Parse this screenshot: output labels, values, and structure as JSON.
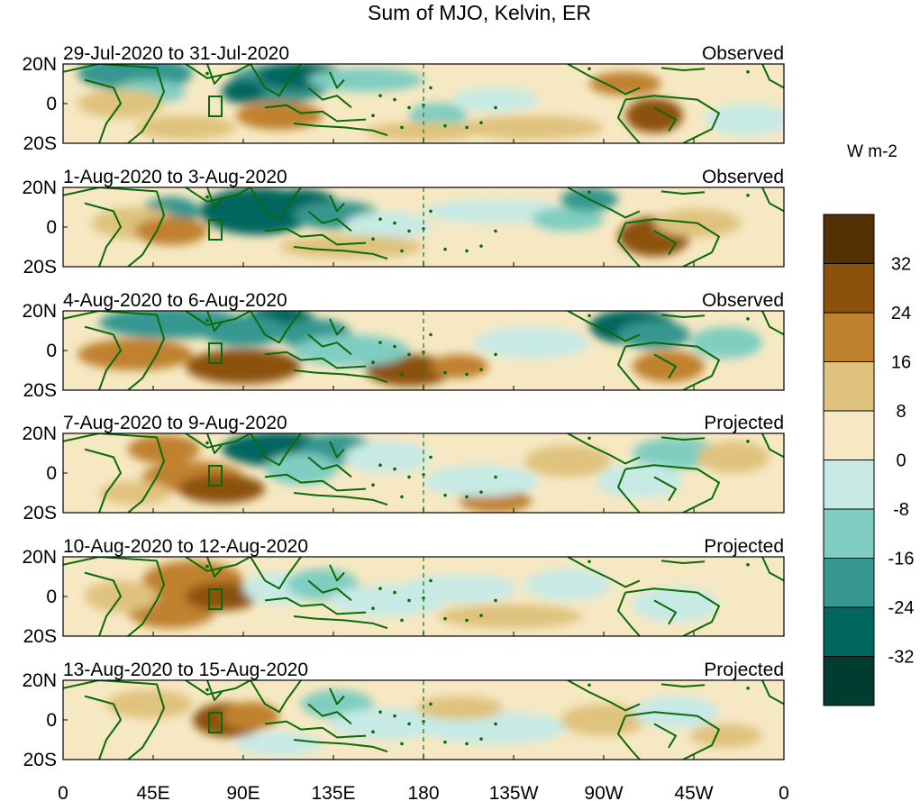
{
  "title": "Sum of MJO, Kelvin, ER",
  "colorbar": {
    "units": "W m-2",
    "labels": [
      "32",
      "24",
      "16",
      "8",
      "0",
      "-8",
      "-16",
      "-24",
      "-32"
    ],
    "colors": [
      "#543005",
      "#8c510a",
      "#bf812d",
      "#dfc27d",
      "#f6e8c3",
      "#c7eae5",
      "#80cdc1",
      "#35978f",
      "#01665e",
      "#003c30"
    ]
  },
  "map_colors": {
    "coast": "#0a6b0a",
    "dateline": "#2d7d2d",
    "ocean_base": "#f6e8c3"
  },
  "lat_labels": [
    "20N",
    "0",
    "20S"
  ],
  "lon_labels": [
    "0",
    "45E",
    "90E",
    "135E",
    "180",
    "135W",
    "90W",
    "45W",
    "0"
  ],
  "panels": [
    {
      "dates": "29-Jul-2020 to 31-Jul-2020",
      "status": "Observed"
    },
    {
      "dates": "1-Aug-2020 to 3-Aug-2020",
      "status": "Observed"
    },
    {
      "dates": "4-Aug-2020 to 6-Aug-2020",
      "status": "Observed"
    },
    {
      "dates": "7-Aug-2020 to 9-Aug-2020",
      "status": "Projected"
    },
    {
      "dates": "10-Aug-2020 to 12-Aug-2020",
      "status": "Projected"
    },
    {
      "dates": "13-Aug-2020 to 15-Aug-2020",
      "status": "Projected"
    }
  ]
}
